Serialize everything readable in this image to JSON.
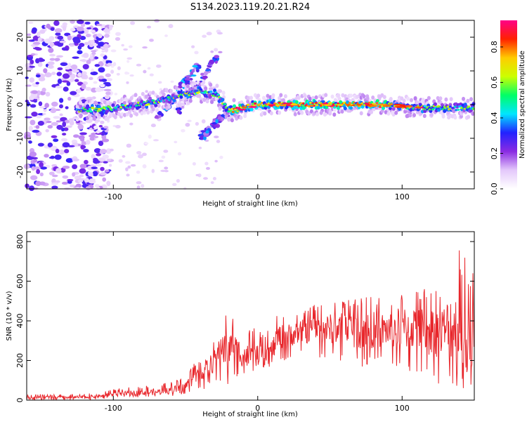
{
  "title": "S134.2023.119.20.21.R24",
  "chart_data": [
    {
      "type": "heatmap",
      "xlabel": "Height of straight line (km)",
      "ylabel": "Frequency (Hz)",
      "xlim": [
        -160,
        150
      ],
      "ylim": [
        -25,
        25
      ],
      "xticks": [
        -100,
        0,
        100
      ],
      "yticks": [
        -20,
        -10,
        0,
        10,
        20
      ],
      "grid": false,
      "colorbar": {
        "label": "Normalized spectral amplitude",
        "range": [
          0,
          0.95
        ],
        "ticks": [
          "0.0",
          "0.2",
          "0.4",
          "0.6",
          "0.8"
        ],
        "colormap": [
          "#ffffff",
          "#e4c8fb",
          "#8a2be2",
          "#2222ff",
          "#00e5ff",
          "#00ff66",
          "#ccff00",
          "#ffcc00",
          "#ff2200",
          "#ff0088"
        ]
      },
      "features": {
        "main_band": {
          "x": [
            -125,
            -110,
            -90,
            -70,
            -55,
            -40,
            -28,
            -20,
            0,
            40,
            80,
            120,
            150
          ],
          "y": [
            -1.5,
            -1.5,
            -0.5,
            1,
            2.5,
            4,
            3,
            -2,
            0,
            0,
            0,
            -1,
            -1
          ],
          "peak_amplitude": 0.9
        },
        "diagonal_streaks": [
          {
            "x": [
              -70,
              -40
            ],
            "y": [
              -4,
              12
            ],
            "amplitude": 0.35
          },
          {
            "x": [
              -55,
              -25
            ],
            "y": [
              -2,
              16
            ],
            "amplitude": 0.3
          },
          {
            "x": [
              -40,
              -20
            ],
            "y": [
              -10,
              -2
            ],
            "amplitude": 0.35
          }
        ],
        "noise_region_x": [
          -160,
          -120
        ]
      }
    },
    {
      "type": "line",
      "xlabel": "Height of straight line (km)",
      "ylabel": "SNR (10 * v/v)",
      "xlim": [
        -160,
        150
      ],
      "ylim": [
        0,
        850
      ],
      "xticks": [
        -100,
        0,
        100
      ],
      "yticks": [
        0,
        200,
        400,
        600,
        800
      ],
      "grid": false,
      "series": [
        {
          "color": "#e8262b",
          "x": [
            -160,
            -150,
            -140,
            -130,
            -120,
            -110,
            -100,
            -90,
            -80,
            -70,
            -60,
            -50,
            -45,
            -40,
            -35,
            -30,
            -27,
            -25,
            -22,
            -20,
            -18,
            -15,
            -10,
            -5,
            0,
            5,
            10,
            15,
            20,
            30,
            40,
            50,
            60,
            70,
            80,
            90,
            100,
            110,
            120,
            130,
            135,
            140,
            145,
            150
          ],
          "y": [
            12,
            12,
            14,
            14,
            15,
            20,
            28,
            34,
            38,
            42,
            48,
            70,
            110,
            130,
            165,
            195,
            240,
            280,
            250,
            230,
            300,
            255,
            230,
            215,
            225,
            215,
            255,
            320,
            325,
            345,
            355,
            360,
            365,
            350,
            355,
            355,
            365,
            365,
            345,
            350,
            400,
            300,
            280,
            310
          ],
          "range": [
            [
              0,
              30
            ],
            [
              0,
              30
            ],
            [
              0,
              30
            ],
            [
              0,
              32
            ],
            [
              0,
              35
            ],
            [
              5,
              40
            ],
            [
              10,
              55
            ],
            [
              15,
              65
            ],
            [
              15,
              70
            ],
            [
              15,
              80
            ],
            [
              20,
              90
            ],
            [
              30,
              130
            ],
            [
              40,
              180
            ],
            [
              50,
              200
            ],
            [
              60,
              250
            ],
            [
              80,
              300
            ],
            [
              100,
              350
            ],
            [
              80,
              400
            ],
            [
              60,
              450
            ],
            [
              80,
              420
            ],
            [
              100,
              440
            ],
            [
              120,
              400
            ],
            [
              120,
              380
            ],
            [
              140,
              380
            ],
            [
              150,
              350
            ],
            [
              150,
              360
            ],
            [
              180,
              400
            ],
            [
              200,
              450
            ],
            [
              200,
              430
            ],
            [
              220,
              460
            ],
            [
              220,
              490
            ],
            [
              200,
              500
            ],
            [
              180,
              500
            ],
            [
              150,
              520
            ],
            [
              160,
              530
            ],
            [
              170,
              520
            ],
            [
              120,
              560
            ],
            [
              140,
              570
            ],
            [
              60,
              560
            ],
            [
              60,
              600
            ],
            [
              50,
              850
            ],
            [
              40,
              770
            ],
            [
              40,
              700
            ],
            [
              50,
              640
            ]
          ]
        }
      ]
    }
  ]
}
